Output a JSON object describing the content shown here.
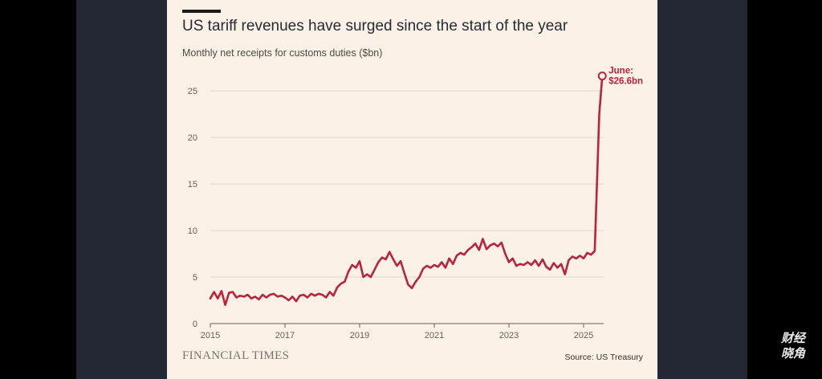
{
  "chart_data": {
    "type": "line",
    "title": "US tariff revenues have surged since the start of the year",
    "subtitle": "Monthly net receipts for customs duties ($bn)",
    "xlabel": "",
    "ylabel": "",
    "xlim": [
      2015.0,
      2025.5
    ],
    "ylim": [
      0,
      27
    ],
    "y_ticks": [
      0,
      5,
      10,
      15,
      20,
      25
    ],
    "x_ticks": [
      2015,
      2017,
      2019,
      2021,
      2023,
      2025
    ],
    "grid": true,
    "series": [
      {
        "name": "Customs duties",
        "color": "#b9233c",
        "points": [
          [
            2015.0,
            2.7
          ],
          [
            2015.1,
            3.4
          ],
          [
            2015.2,
            2.7
          ],
          [
            2015.3,
            3.5
          ],
          [
            2015.4,
            2.0
          ],
          [
            2015.5,
            3.3
          ],
          [
            2015.6,
            3.4
          ],
          [
            2015.7,
            2.8
          ],
          [
            2015.8,
            3.0
          ],
          [
            2015.9,
            2.9
          ],
          [
            2016.0,
            3.1
          ],
          [
            2016.1,
            2.7
          ],
          [
            2016.2,
            2.9
          ],
          [
            2016.3,
            2.6
          ],
          [
            2016.4,
            3.1
          ],
          [
            2016.5,
            2.8
          ],
          [
            2016.6,
            3.1
          ],
          [
            2016.7,
            3.2
          ],
          [
            2016.8,
            2.9
          ],
          [
            2016.9,
            3.0
          ],
          [
            2017.0,
            2.8
          ],
          [
            2017.1,
            2.5
          ],
          [
            2017.2,
            2.9
          ],
          [
            2017.3,
            2.4
          ],
          [
            2017.4,
            3.0
          ],
          [
            2017.5,
            3.1
          ],
          [
            2017.6,
            2.8
          ],
          [
            2017.7,
            3.2
          ],
          [
            2017.8,
            3.0
          ],
          [
            2017.9,
            3.2
          ],
          [
            2018.0,
            3.1
          ],
          [
            2018.1,
            2.8
          ],
          [
            2018.2,
            3.4
          ],
          [
            2018.3,
            3.0
          ],
          [
            2018.4,
            3.9
          ],
          [
            2018.5,
            4.3
          ],
          [
            2018.6,
            4.5
          ],
          [
            2018.7,
            5.6
          ],
          [
            2018.8,
            6.3
          ],
          [
            2018.9,
            6.0
          ],
          [
            2019.0,
            6.7
          ],
          [
            2019.1,
            5.0
          ],
          [
            2019.2,
            5.3
          ],
          [
            2019.3,
            5.0
          ],
          [
            2019.4,
            5.8
          ],
          [
            2019.5,
            6.6
          ],
          [
            2019.6,
            7.1
          ],
          [
            2019.7,
            6.9
          ],
          [
            2019.8,
            7.7
          ],
          [
            2019.9,
            6.9
          ],
          [
            2020.0,
            6.2
          ],
          [
            2020.1,
            6.7
          ],
          [
            2020.2,
            5.4
          ],
          [
            2020.3,
            4.2
          ],
          [
            2020.4,
            3.8
          ],
          [
            2020.5,
            4.5
          ],
          [
            2020.6,
            5.0
          ],
          [
            2020.7,
            5.9
          ],
          [
            2020.8,
            6.2
          ],
          [
            2020.9,
            6.0
          ],
          [
            2021.0,
            6.3
          ],
          [
            2021.1,
            6.1
          ],
          [
            2021.2,
            6.6
          ],
          [
            2021.3,
            6.0
          ],
          [
            2021.4,
            7.0
          ],
          [
            2021.5,
            6.4
          ],
          [
            2021.6,
            7.3
          ],
          [
            2021.7,
            7.6
          ],
          [
            2021.8,
            7.4
          ],
          [
            2021.9,
            7.9
          ],
          [
            2022.0,
            8.2
          ],
          [
            2022.1,
            8.6
          ],
          [
            2022.2,
            7.9
          ],
          [
            2022.3,
            9.1
          ],
          [
            2022.4,
            8.0
          ],
          [
            2022.5,
            8.4
          ],
          [
            2022.6,
            8.6
          ],
          [
            2022.7,
            8.3
          ],
          [
            2022.8,
            8.7
          ],
          [
            2022.9,
            7.5
          ],
          [
            2023.0,
            6.6
          ],
          [
            2023.1,
            7.0
          ],
          [
            2023.2,
            6.2
          ],
          [
            2023.3,
            6.4
          ],
          [
            2023.4,
            6.3
          ],
          [
            2023.5,
            6.6
          ],
          [
            2023.6,
            6.3
          ],
          [
            2023.7,
            6.8
          ],
          [
            2023.8,
            6.2
          ],
          [
            2023.9,
            6.9
          ],
          [
            2024.0,
            6.1
          ],
          [
            2024.1,
            5.8
          ],
          [
            2024.2,
            6.5
          ],
          [
            2024.3,
            6.0
          ],
          [
            2024.4,
            6.4
          ],
          [
            2024.5,
            5.3
          ],
          [
            2024.6,
            6.8
          ],
          [
            2024.7,
            7.2
          ],
          [
            2024.8,
            7.0
          ],
          [
            2024.9,
            7.3
          ],
          [
            2025.0,
            7.0
          ],
          [
            2025.1,
            7.6
          ],
          [
            2025.2,
            7.4
          ],
          [
            2025.3,
            7.8
          ],
          [
            2025.42,
            22.5
          ],
          [
            2025.5,
            26.6
          ]
        ]
      }
    ],
    "annotation": {
      "line1": "June:",
      "line2": "$26.6bn",
      "x": 2025.5,
      "y": 26.6
    }
  },
  "footer": {
    "logo_text": "FINANCIAL TIMES",
    "source": "Source: US Treasury"
  },
  "watermark": {
    "line1": "财经",
    "line2": "晓角"
  }
}
